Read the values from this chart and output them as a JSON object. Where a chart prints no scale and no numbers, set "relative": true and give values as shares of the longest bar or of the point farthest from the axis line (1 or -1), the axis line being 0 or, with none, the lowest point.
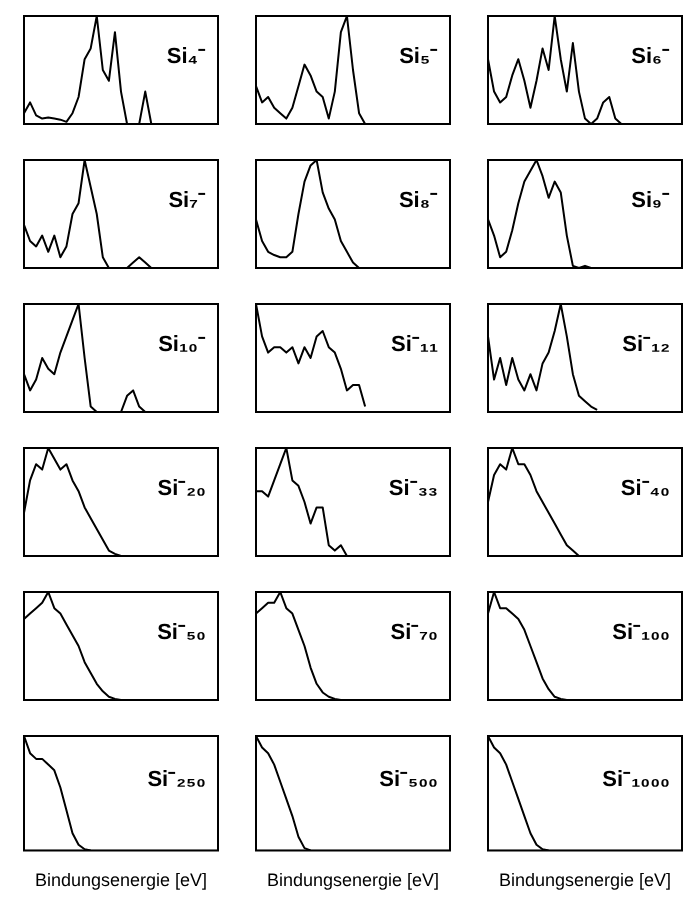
{
  "chart_data": [
    {
      "type": "line",
      "title": "Si₄⁻",
      "relative": true,
      "categories": [
        null,
        null,
        null,
        null,
        null,
        null,
        null,
        null,
        null,
        null,
        null,
        null,
        null,
        null,
        null,
        null,
        null,
        null,
        null,
        null,
        null,
        null,
        null,
        null,
        null,
        null,
        null,
        null,
        null,
        null,
        null,
        null,
        null
      ],
      "series": [
        {
          "color": "#000000",
          "values": [
            0.1,
            0.2,
            0.08,
            0.05,
            0.06,
            0.05,
            0.04,
            0.02,
            0.1,
            0.25,
            0.6,
            0.7,
            1,
            0.5,
            0.4,
            0.85,
            0.3,
            0,
            0,
            0,
            0.3,
            0,
            0,
            null,
            null,
            null,
            null,
            null,
            null,
            null,
            null,
            null,
            null
          ]
        }
      ]
    },
    {
      "type": "line",
      "title": "Si₅⁻",
      "relative": true,
      "categories": [
        null,
        null,
        null,
        null,
        null,
        null,
        null,
        null,
        null,
        null,
        null,
        null,
        null,
        null,
        null,
        null,
        null,
        null,
        null,
        null,
        null,
        null,
        null,
        null,
        null,
        null,
        null,
        null,
        null,
        null,
        null,
        null,
        null
      ],
      "series": [
        {
          "color": "#000000",
          "values": [
            0.35,
            0.2,
            0.25,
            0.15,
            0.1,
            0.05,
            0.15,
            0.35,
            0.55,
            0.45,
            0.3,
            0.25,
            0.05,
            0.3,
            0.85,
            1,
            0.5,
            0.1,
            0,
            0,
            0,
            0,
            0,
            0,
            0,
            0,
            0,
            0,
            0,
            0,
            0,
            0,
            0
          ]
        }
      ]
    },
    {
      "type": "line",
      "title": "Si₆⁻",
      "relative": true,
      "categories": [
        null,
        null,
        null,
        null,
        null,
        null,
        null,
        null,
        null,
        null,
        null,
        null,
        null,
        null,
        null,
        null,
        null,
        null,
        null,
        null,
        null,
        null,
        null,
        null,
        null,
        null,
        null,
        null,
        null,
        null,
        null,
        null,
        null
      ],
      "series": [
        {
          "color": "#000000",
          "values": [
            0.6,
            0.3,
            0.2,
            0.25,
            0.45,
            0.6,
            0.4,
            0.15,
            0.4,
            0.7,
            0.5,
            1,
            0.6,
            0.3,
            0.75,
            0.3,
            0.05,
            0,
            0.05,
            0.2,
            0.25,
            0.05,
            0,
            0,
            0,
            0,
            0,
            0,
            0,
            0,
            0,
            0,
            0
          ]
        }
      ]
    },
    {
      "type": "line",
      "title": "Si₇⁻",
      "relative": true,
      "categories": [
        null,
        null,
        null,
        null,
        null,
        null,
        null,
        null,
        null,
        null,
        null,
        null,
        null,
        null,
        null,
        null,
        null,
        null,
        null,
        null,
        null,
        null,
        null,
        null,
        null,
        null,
        null,
        null,
        null,
        null,
        null,
        null,
        null
      ],
      "series": [
        {
          "color": "#000000",
          "values": [
            0.4,
            0.25,
            0.2,
            0.3,
            0.15,
            0.3,
            0.1,
            0.2,
            0.5,
            0.6,
            1,
            0.75,
            0.5,
            0.1,
            0,
            0,
            0,
            0,
            0.05,
            0.1,
            0.05,
            0,
            null,
            null,
            null,
            null,
            null,
            null,
            null,
            null,
            null,
            null,
            null
          ]
        }
      ]
    },
    {
      "type": "line",
      "title": "Si₈⁻",
      "relative": true,
      "categories": [
        null,
        null,
        null,
        null,
        null,
        null,
        null,
        null,
        null,
        null,
        null,
        null,
        null,
        null,
        null,
        null,
        null,
        null,
        null,
        null,
        null,
        null,
        null,
        null,
        null,
        null,
        null,
        null,
        null,
        null,
        null,
        null,
        null
      ],
      "series": [
        {
          "color": "#000000",
          "values": [
            0.45,
            0.25,
            0.15,
            0.12,
            0.1,
            0.1,
            0.15,
            0.5,
            0.8,
            0.95,
            1,
            0.7,
            0.55,
            0.45,
            0.25,
            0.15,
            0.05,
            0,
            null,
            null,
            null,
            null,
            null,
            null,
            null,
            null,
            null,
            null,
            null,
            null,
            null,
            null,
            null
          ]
        }
      ]
    },
    {
      "type": "line",
      "title": "Si₉⁻",
      "relative": true,
      "categories": [
        null,
        null,
        null,
        null,
        null,
        null,
        null,
        null,
        null,
        null,
        null,
        null,
        null,
        null,
        null,
        null,
        null,
        null,
        null,
        null,
        null,
        null,
        null,
        null,
        null,
        null,
        null,
        null,
        null,
        null,
        null,
        null,
        null
      ],
      "series": [
        {
          "color": "#000000",
          "values": [
            0.45,
            0.3,
            0.1,
            0.15,
            0.35,
            0.6,
            0.8,
            0.9,
            1,
            0.85,
            0.65,
            0.8,
            0.7,
            0.3,
            0.02,
            0,
            0.02,
            0,
            0,
            null,
            null,
            null,
            null,
            null,
            null,
            null,
            null,
            null,
            null,
            null,
            null,
            null,
            null
          ]
        }
      ]
    },
    {
      "type": "line",
      "title": "Si₁₀⁻",
      "relative": true,
      "categories": [
        null,
        null,
        null,
        null,
        null,
        null,
        null,
        null,
        null,
        null,
        null,
        null,
        null,
        null,
        null,
        null,
        null,
        null,
        null,
        null,
        null,
        null,
        null,
        null,
        null,
        null,
        null,
        null,
        null,
        null,
        null,
        null,
        null
      ],
      "series": [
        {
          "color": "#000000",
          "values": [
            0.35,
            0.2,
            0.3,
            0.5,
            0.4,
            0.35,
            0.55,
            0.7,
            0.85,
            1,
            0.5,
            0.05,
            0,
            null,
            null,
            null,
            0,
            0.15,
            0.2,
            0.05,
            0,
            null,
            null,
            null,
            null,
            null,
            null,
            null,
            null,
            null,
            null,
            null,
            null
          ]
        }
      ]
    },
    {
      "type": "line",
      "title": "Si⁻₁₁",
      "relative": true,
      "categories": [
        null,
        null,
        null,
        null,
        null,
        null,
        null,
        null,
        null,
        null,
        null,
        null,
        null,
        null,
        null,
        null,
        null,
        null,
        null,
        null,
        null,
        null,
        null,
        null,
        null,
        null,
        null,
        null,
        null,
        null,
        null,
        null,
        null
      ],
      "series": [
        {
          "color": "#000000",
          "values": [
            1,
            0.7,
            0.55,
            0.6,
            0.6,
            0.55,
            0.6,
            0.45,
            0.6,
            0.5,
            0.7,
            0.75,
            0.6,
            0.55,
            0.4,
            0.2,
            0.25,
            0.25,
            0.05,
            null,
            null,
            null,
            null,
            null,
            null,
            null,
            null,
            null,
            null,
            null,
            null,
            null,
            null
          ]
        }
      ]
    },
    {
      "type": "line",
      "title": "Si⁻₁₂",
      "relative": true,
      "categories": [
        null,
        null,
        null,
        null,
        null,
        null,
        null,
        null,
        null,
        null,
        null,
        null,
        null,
        null,
        null,
        null,
        null,
        null,
        null,
        null,
        null,
        null,
        null,
        null,
        null,
        null,
        null,
        null,
        null,
        null,
        null,
        null,
        null
      ],
      "series": [
        {
          "color": "#000000",
          "values": [
            0.7,
            0.3,
            0.5,
            0.25,
            0.5,
            0.3,
            0.2,
            0.35,
            0.2,
            0.45,
            0.55,
            0.75,
            1,
            0.7,
            0.35,
            0.15,
            0.1,
            0.05,
            0.02,
            null,
            null,
            null,
            null,
            null,
            null,
            null,
            null,
            null,
            null,
            null,
            null,
            null,
            null
          ]
        }
      ]
    },
    {
      "type": "line",
      "title": "Si⁻₂₀",
      "relative": true,
      "categories": [
        null,
        null,
        null,
        null,
        null,
        null,
        null,
        null,
        null,
        null,
        null,
        null,
        null,
        null,
        null,
        null,
        null,
        null,
        null,
        null,
        null,
        null,
        null,
        null,
        null,
        null,
        null,
        null,
        null,
        null,
        null,
        null,
        null
      ],
      "series": [
        {
          "color": "#000000",
          "values": [
            0.4,
            0.7,
            0.85,
            0.8,
            1,
            0.9,
            0.8,
            0.85,
            0.7,
            0.6,
            0.45,
            0.35,
            0.25,
            0.15,
            0.05,
            0.02,
            0,
            null,
            null,
            null,
            null,
            null,
            null,
            null,
            null,
            null,
            null,
            null,
            null,
            null,
            null,
            null,
            null
          ]
        }
      ]
    },
    {
      "type": "line",
      "title": "Si⁻₃₃",
      "relative": true,
      "categories": [
        null,
        null,
        null,
        null,
        null,
        null,
        null,
        null,
        null,
        null,
        null,
        null,
        null,
        null,
        null,
        null,
        null,
        null,
        null,
        null,
        null,
        null,
        null,
        null,
        null,
        null,
        null,
        null,
        null,
        null,
        null,
        null,
        null
      ],
      "series": [
        {
          "color": "#000000",
          "values": [
            0.6,
            0.6,
            0.55,
            0.7,
            0.85,
            1,
            0.7,
            0.65,
            0.5,
            0.3,
            0.45,
            0.45,
            0.1,
            0.05,
            0.1,
            0,
            null,
            null,
            null,
            null,
            null,
            null,
            null,
            null,
            null,
            null,
            null,
            null,
            null,
            null,
            null,
            null,
            null
          ]
        }
      ]
    },
    {
      "type": "line",
      "title": "Si⁻₄₀",
      "relative": true,
      "categories": [
        null,
        null,
        null,
        null,
        null,
        null,
        null,
        null,
        null,
        null,
        null,
        null,
        null,
        null,
        null,
        null,
        null,
        null,
        null,
        null,
        null,
        null,
        null,
        null,
        null,
        null,
        null,
        null,
        null,
        null,
        null,
        null,
        null
      ],
      "series": [
        {
          "color": "#000000",
          "values": [
            0.5,
            0.75,
            0.85,
            0.8,
            1,
            0.85,
            0.85,
            0.75,
            0.6,
            0.5,
            0.4,
            0.3,
            0.2,
            0.1,
            0.05,
            0,
            null,
            null,
            null,
            null,
            null,
            null,
            null,
            null,
            null,
            null,
            null,
            null,
            null,
            null,
            null,
            null,
            null
          ]
        }
      ]
    },
    {
      "type": "line",
      "title": "Si⁻₅₀",
      "relative": true,
      "categories": [
        null,
        null,
        null,
        null,
        null,
        null,
        null,
        null,
        null,
        null,
        null,
        null,
        null,
        null,
        null,
        null,
        null,
        null,
        null,
        null,
        null,
        null,
        null,
        null,
        null,
        null,
        null,
        null,
        null,
        null,
        null,
        null,
        null
      ],
      "series": [
        {
          "color": "#000000",
          "values": [
            0.75,
            0.8,
            0.85,
            0.9,
            1,
            0.85,
            0.8,
            0.7,
            0.6,
            0.5,
            0.35,
            0.25,
            0.15,
            0.08,
            0.03,
            0.01,
            0,
            null,
            null,
            null,
            null,
            null,
            null,
            null,
            null,
            null,
            null,
            null,
            null,
            null,
            null,
            null,
            null
          ]
        }
      ]
    },
    {
      "type": "line",
      "title": "Si⁻₇₀",
      "relative": true,
      "categories": [
        null,
        null,
        null,
        null,
        null,
        null,
        null,
        null,
        null,
        null,
        null,
        null,
        null,
        null,
        null,
        null,
        null,
        null,
        null,
        null,
        null,
        null,
        null,
        null,
        null,
        null,
        null,
        null,
        null,
        null,
        null,
        null,
        null
      ],
      "series": [
        {
          "color": "#000000",
          "values": [
            0.8,
            0.85,
            0.9,
            0.9,
            1,
            0.85,
            0.8,
            0.65,
            0.5,
            0.3,
            0.15,
            0.07,
            0.03,
            0.01,
            0,
            null,
            null,
            null,
            null,
            null,
            null,
            null,
            null,
            null,
            null,
            null,
            null,
            null,
            null,
            null,
            null,
            null,
            null
          ]
        }
      ]
    },
    {
      "type": "line",
      "title": "Si⁻₁₀₀",
      "relative": true,
      "categories": [
        null,
        null,
        null,
        null,
        null,
        null,
        null,
        null,
        null,
        null,
        null,
        null,
        null,
        null,
        null,
        null,
        null,
        null,
        null,
        null,
        null,
        null,
        null,
        null,
        null,
        null,
        null,
        null,
        null,
        null,
        null,
        null,
        null
      ],
      "series": [
        {
          "color": "#000000",
          "values": [
            0.8,
            1,
            0.85,
            0.85,
            0.8,
            0.75,
            0.65,
            0.5,
            0.35,
            0.2,
            0.1,
            0.03,
            0.01,
            0,
            null,
            null,
            null,
            null,
            null,
            null,
            null,
            null,
            null,
            null,
            null,
            null,
            null,
            null,
            null,
            null,
            null,
            null,
            null
          ]
        }
      ]
    },
    {
      "type": "line",
      "title": "Si⁻₂₅₀",
      "xlabel": "Bindungsenergie [eV]",
      "relative": true,
      "categories": [
        null,
        null,
        null,
        null,
        null,
        null,
        null,
        null,
        null,
        null,
        null,
        null,
        null,
        null,
        null,
        null,
        null,
        null,
        null,
        null,
        null,
        null,
        null,
        null,
        null,
        null,
        null,
        null,
        null,
        null,
        null,
        null,
        null
      ],
      "series": [
        {
          "color": "#000000",
          "values": [
            1,
            0.85,
            0.8,
            0.8,
            0.75,
            0.7,
            0.55,
            0.35,
            0.15,
            0.05,
            0.01,
            0,
            null,
            null,
            null,
            null,
            null,
            null,
            null,
            null,
            null,
            null,
            null,
            null,
            null,
            null,
            null,
            null,
            null,
            null,
            null,
            null,
            null
          ]
        }
      ]
    },
    {
      "type": "line",
      "title": "Si⁻₅₀₀",
      "xlabel": "Bindungsenergie [eV]",
      "relative": true,
      "categories": [
        null,
        null,
        null,
        null,
        null,
        null,
        null,
        null,
        null,
        null,
        null,
        null,
        null,
        null,
        null,
        null,
        null,
        null,
        null,
        null,
        null,
        null,
        null,
        null,
        null,
        null,
        null,
        null,
        null,
        null,
        null,
        null,
        null
      ],
      "series": [
        {
          "color": "#000000",
          "values": [
            1,
            0.9,
            0.85,
            0.75,
            0.6,
            0.45,
            0.3,
            0.12,
            0.02,
            0,
            null,
            null,
            null,
            null,
            null,
            null,
            null,
            null,
            null,
            null,
            null,
            null,
            null,
            null,
            null,
            null,
            null,
            null,
            null,
            null,
            null,
            null,
            null
          ]
        }
      ]
    },
    {
      "type": "line",
      "title": "Si⁻₁₀₀₀",
      "xlabel": "Bindungsenergie [eV]",
      "relative": true,
      "categories": [
        null,
        null,
        null,
        null,
        null,
        null,
        null,
        null,
        null,
        null,
        null,
        null,
        null,
        null,
        null,
        null,
        null,
        null,
        null,
        null,
        null,
        null,
        null,
        null,
        null,
        null,
        null,
        null,
        null,
        null,
        null,
        null,
        null
      ],
      "series": [
        {
          "color": "#000000",
          "values": [
            1,
            0.9,
            0.85,
            0.75,
            0.6,
            0.45,
            0.3,
            0.15,
            0.05,
            0.01,
            0,
            null,
            null,
            null,
            null,
            null,
            null,
            null,
            null,
            null,
            null,
            null,
            null,
            null,
            null,
            null,
            null,
            null,
            null,
            null,
            null,
            null,
            null
          ]
        }
      ]
    }
  ]
}
